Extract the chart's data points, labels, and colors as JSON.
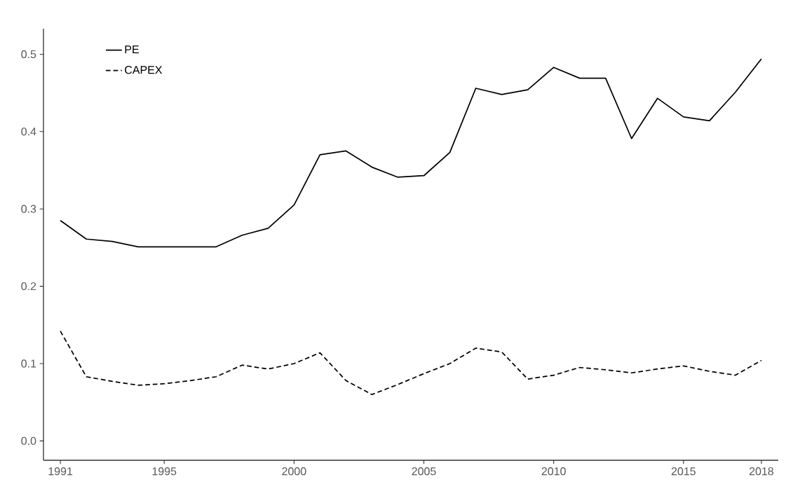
{
  "chart_data": {
    "type": "line",
    "x": [
      1991,
      1992,
      1993,
      1994,
      1995,
      1996,
      1997,
      1998,
      1999,
      2000,
      2001,
      2002,
      2003,
      2004,
      2005,
      2006,
      2007,
      2008,
      2009,
      2010,
      2011,
      2012,
      2013,
      2014,
      2015,
      2016,
      2017,
      2018
    ],
    "series": [
      {
        "name": "PE",
        "color": "#000000",
        "line_style": "solid",
        "values": [
          0.285,
          0.261,
          0.258,
          0.251,
          0.251,
          0.251,
          0.251,
          0.266,
          0.275,
          0.305,
          0.37,
          0.375,
          0.354,
          0.341,
          0.343,
          0.373,
          0.456,
          0.448,
          0.454,
          0.483,
          0.469,
          0.469,
          0.391,
          0.443,
          0.419,
          0.414,
          0.451,
          0.494
        ]
      },
      {
        "name": "CAPEX",
        "color": "#000000",
        "line_style": "dashed",
        "values": [
          0.142,
          0.083,
          0.077,
          0.072,
          0.074,
          0.078,
          0.083,
          0.098,
          0.093,
          0.1,
          0.114,
          0.078,
          0.06,
          0.073,
          0.087,
          0.1,
          0.12,
          0.115,
          0.08,
          0.085,
          0.095,
          0.092,
          0.088,
          0.093,
          0.097,
          0.09,
          0.085,
          0.104
        ]
      }
    ],
    "xlim": [
      1990.35,
      2018.65
    ],
    "ylim": [
      -0.025,
      0.533
    ],
    "xticks": [
      1991,
      1995,
      2000,
      2005,
      2010,
      2015,
      2018
    ],
    "yticks": [
      {
        "value": 0,
        "label": "0.0"
      },
      {
        "value": 0.1,
        "label": "0.1"
      },
      {
        "value": 0.2,
        "label": "0.2"
      },
      {
        "value": 0.3,
        "label": "0.3"
      },
      {
        "value": 0.4,
        "label": "0.4"
      },
      {
        "value": 0.5,
        "label": "0.5"
      }
    ],
    "grid": false,
    "legend": "top left",
    "marker": "none"
  }
}
